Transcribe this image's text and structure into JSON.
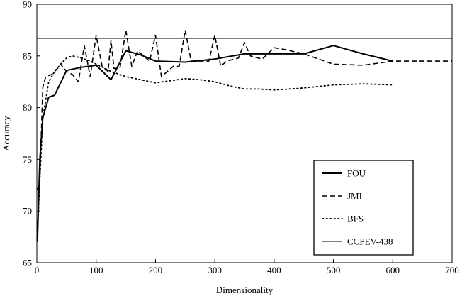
{
  "chart_data": {
    "type": "line",
    "title": "",
    "xlabel": "Dimensionality",
    "ylabel": "Accuracy",
    "xlim": [
      0,
      700
    ],
    "ylim": [
      65,
      90
    ],
    "xticks": [
      0,
      100,
      200,
      300,
      400,
      500,
      600,
      700
    ],
    "yticks": [
      65,
      70,
      75,
      80,
      85,
      90
    ],
    "grid": false,
    "legend_position": "bottom-right",
    "series": [
      {
        "name": "FOU",
        "style": "solid-thick",
        "x": [
          1,
          5,
          10,
          20,
          30,
          50,
          75,
          100,
          125,
          150,
          175,
          200,
          250,
          300,
          350,
          400,
          450,
          500,
          550,
          600
        ],
        "y": [
          67,
          75,
          79,
          81,
          81.2,
          83.6,
          83.9,
          84.1,
          82.7,
          85.5,
          85.1,
          84.5,
          84.4,
          84.7,
          85.2,
          85.2,
          85.2,
          86.0,
          85.2,
          84.5
        ]
      },
      {
        "name": "JMI",
        "style": "dashed",
        "x": [
          1,
          5,
          10,
          15,
          25,
          35,
          40,
          50,
          60,
          70,
          80,
          90,
          100,
          110,
          120,
          125,
          130,
          140,
          150,
          160,
          170,
          180,
          190,
          200,
          210,
          220,
          230,
          240,
          250,
          260,
          270,
          280,
          290,
          300,
          310,
          320,
          340,
          350,
          360,
          380,
          400,
          420,
          450,
          500,
          550,
          600,
          650,
          700
        ],
        "y": [
          72,
          73,
          82,
          83,
          83.2,
          83.8,
          84.2,
          83.5,
          83.2,
          82.5,
          86.0,
          83.0,
          87.0,
          84.0,
          83.5,
          86.5,
          83.8,
          83.8,
          87.5,
          84.0,
          85.5,
          85.0,
          84.5,
          87.0,
          83.0,
          83.5,
          84.0,
          84.0,
          87.5,
          84.5,
          84.5,
          84.5,
          84.5,
          87.0,
          84.0,
          84.5,
          84.8,
          86.3,
          85.0,
          84.7,
          85.8,
          85.6,
          85.2,
          84.2,
          84.1,
          84.5,
          84.5,
          84.5
        ]
      },
      {
        "name": "BFS",
        "style": "dotted",
        "x": [
          1,
          5,
          10,
          20,
          30,
          40,
          50,
          60,
          75,
          90,
          100,
          125,
          150,
          175,
          200,
          225,
          250,
          275,
          300,
          325,
          350,
          375,
          400,
          425,
          450,
          500,
          550,
          600
        ],
        "y": [
          68,
          73,
          79,
          82.5,
          83.5,
          84.2,
          84.8,
          85.0,
          84.8,
          84.5,
          84.2,
          83.5,
          83.0,
          82.7,
          82.4,
          82.6,
          82.8,
          82.7,
          82.5,
          82.1,
          81.8,
          81.8,
          81.7,
          81.8,
          81.9,
          82.2,
          82.3,
          82.2
        ]
      },
      {
        "name": "CCPEV-438",
        "style": "solid-thin",
        "x": [
          0,
          700
        ],
        "y": [
          86.7,
          86.7
        ]
      }
    ]
  }
}
